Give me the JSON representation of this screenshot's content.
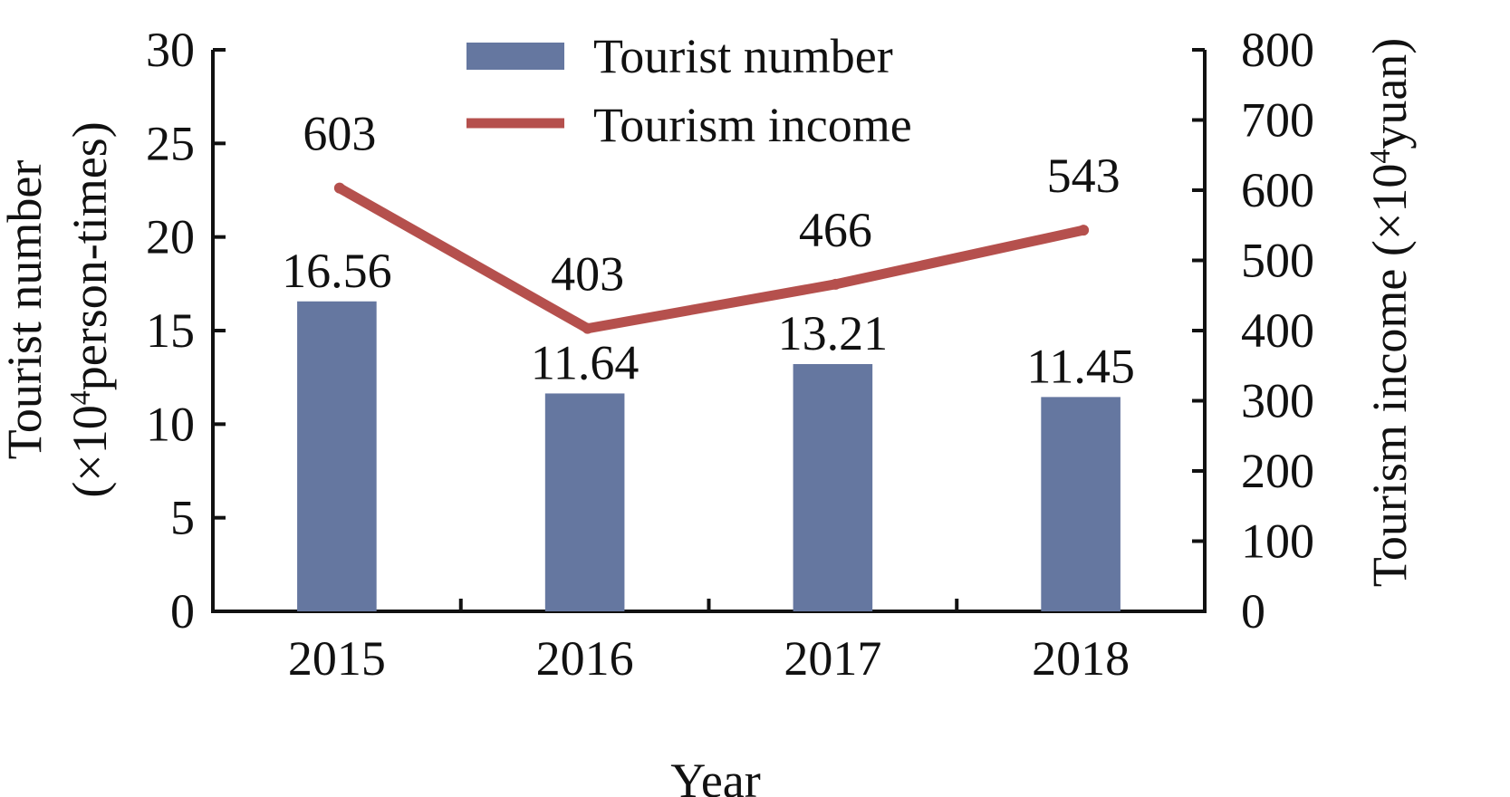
{
  "chart_data": {
    "type": "bar",
    "title": "",
    "xlabel": "Year",
    "ylabel_left": {
      "main": "Tourist number",
      "prefix": "(×10",
      "sup": "4",
      "suffix": "person-times)"
    },
    "ylabel_right": {
      "prefix": "Tourism income (×10",
      "sup": "4",
      "suffix": "yuan)"
    },
    "categories": [
      "2015",
      "2016",
      "2017",
      "2018"
    ],
    "ylim_left": [
      0,
      30
    ],
    "yticks_left": [
      "0",
      "5",
      "10",
      "15",
      "20",
      "25",
      "30"
    ],
    "ylim_right": [
      0,
      800
    ],
    "yticks_right": [
      "0",
      "100",
      "200",
      "300",
      "400",
      "500",
      "600",
      "700",
      "800"
    ],
    "series": [
      {
        "name": "Tourist number",
        "kind": "bar",
        "axis": "left",
        "color": "#6577a0",
        "values": [
          16.56,
          11.64,
          13.21,
          11.45
        ],
        "labels": [
          "16.56",
          "11.64",
          "13.21",
          "11.45"
        ]
      },
      {
        "name": "Tourism income",
        "kind": "line",
        "axis": "right",
        "color": "#b5504d",
        "values": [
          603,
          403,
          466,
          543
        ],
        "labels": [
          "603",
          "403",
          "466",
          "543"
        ]
      }
    ],
    "legend_position": "top-center",
    "grid": false
  }
}
